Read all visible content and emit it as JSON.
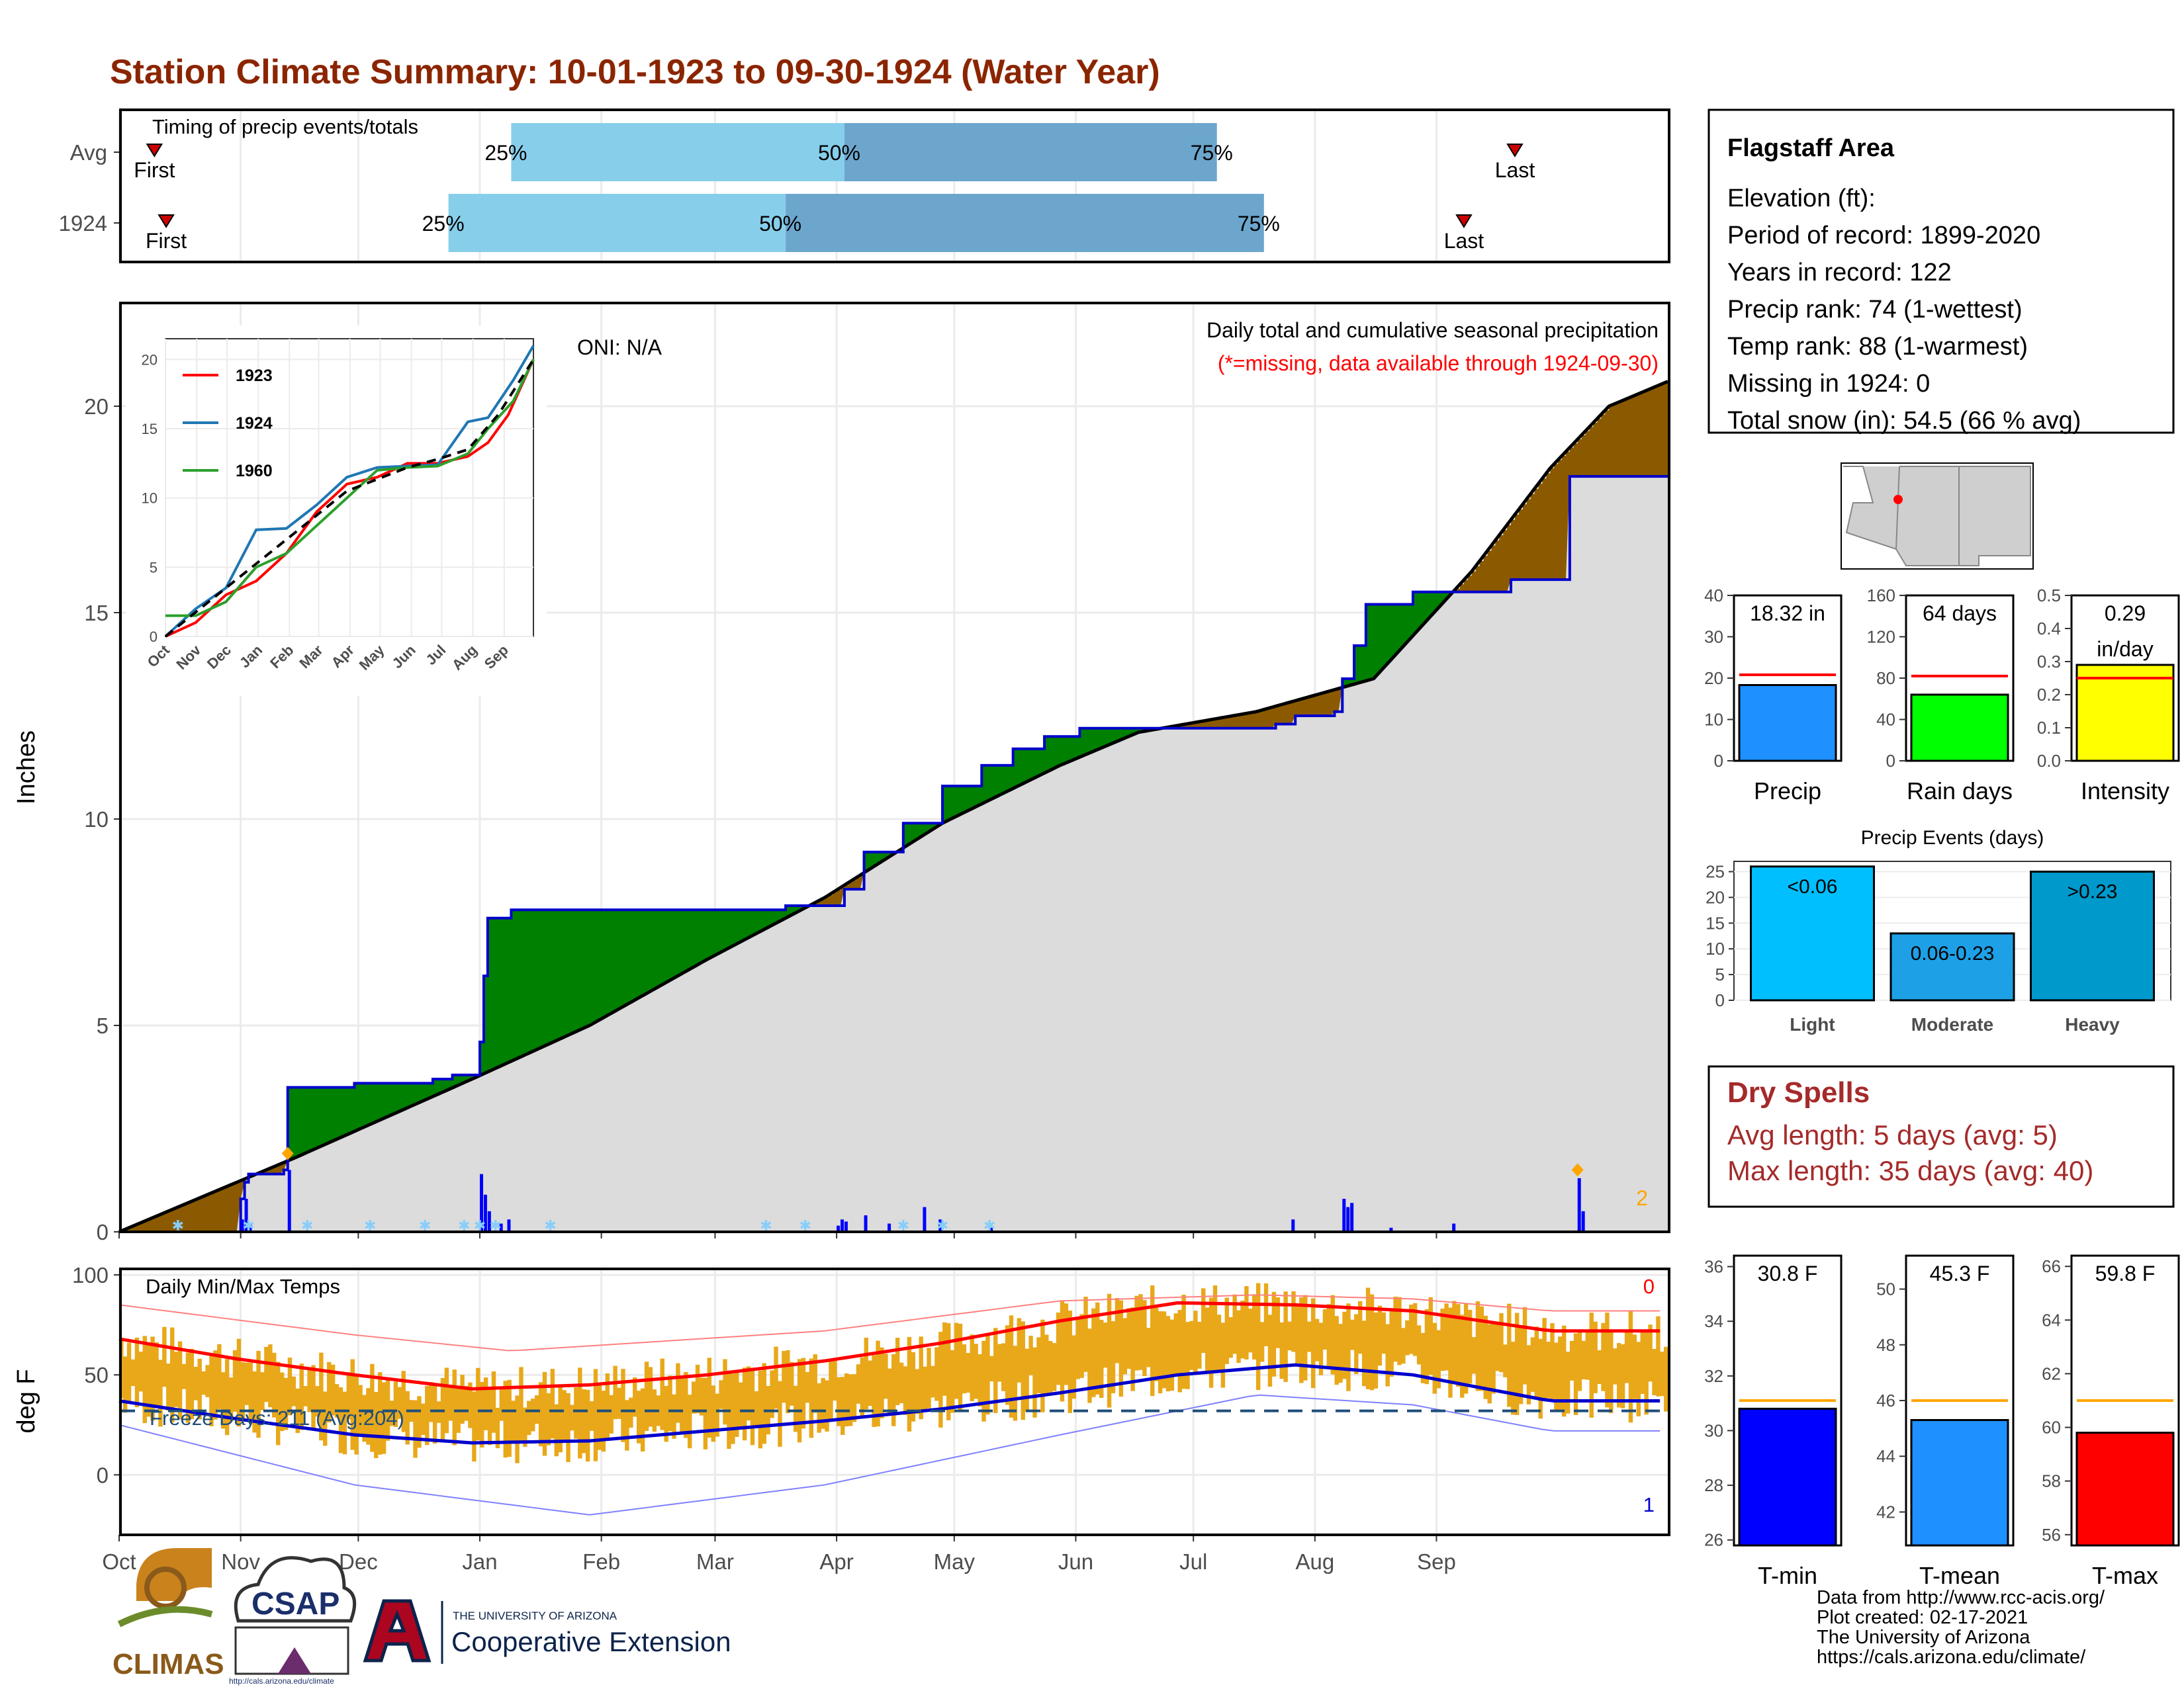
{
  "page": {
    "title": "Station Climate Summary: 10-01-1923 to 09-30-1924 (Water Year)",
    "footer": [
      "Data from http://www.rcc-acis.org/",
      "Plot created: 02-17-2021",
      "The University of Arizona",
      "https://cals.arizona.edu/climate/"
    ],
    "logos": {
      "climas": "CLIMAS",
      "csap": "CSAP",
      "csap_url": "http://cals.arizona.edu/climate",
      "ua_line1": "THE UNIVERSITY OF ARIZONA",
      "ua_line2": "Cooperative Extension"
    }
  },
  "colors": {
    "title": "#8B2500",
    "early": "#87CEEB",
    "late": "#6CA6CD",
    "surplus": "#008000",
    "deficit": "#8B5A00",
    "gray_fill": "#DCDCDC",
    "daily_bar": "#0000FF",
    "precip": "#1E90FF",
    "raindays": "#00FF00",
    "intensity": "#FFFF00",
    "avg_line": "#FF0000",
    "temp_bar": "#E8A81A",
    "tmin": "#0000FF",
    "tmean": "#1E90FF",
    "tmax": "#FF0000",
    "orange_line": "#FFA500",
    "dry": "#A52A2A"
  },
  "months": [
    "Oct",
    "Nov",
    "Dec",
    "Jan",
    "Feb",
    "Mar",
    "Apr",
    "May",
    "Jun",
    "Jul",
    "Aug",
    "Sep"
  ],
  "timing": {
    "label": "Timing of precip events/totals",
    "rows": [
      {
        "name": "Avg",
        "q25_day": 100,
        "q50_day": 185,
        "q75_day": 280,
        "first_day": 9,
        "last_day": 356,
        "q25": "25%",
        "q50": "50%",
        "q75": "75%",
        "first": "First",
        "last": "Last"
      },
      {
        "name": "1924",
        "q25_day": 84,
        "q50_day": 170,
        "q75_day": 292,
        "first_day": 12,
        "last_day": 343,
        "q25": "25%",
        "q50": "50%",
        "q75": "75%",
        "first": "First",
        "last": "Last"
      }
    ]
  },
  "info": {
    "heading": "Flagstaff Area",
    "lines": [
      "Elevation (ft):",
      "Period of record: 1899-2020",
      "Years in record: 122",
      "Precip rank: 74 (1-wettest)",
      "Temp rank: 88 (1-warmest)",
      "Missing in 1924: 0",
      "Total snow (in): 54.5 (66 % avg)"
    ]
  },
  "precip_main": {
    "ylabel": "Inches",
    "note1": "Daily total and cumulative seasonal precipitation",
    "note2": "(*=missing, data available through 1924-09-30)",
    "oni": "ONI: N/A",
    "count_label": "2",
    "yticks": [
      "0",
      "5",
      "10",
      "15",
      "20"
    ]
  },
  "chart_data": [
    {
      "type": "area",
      "name": "cumulative",
      "xlabel": "",
      "ylabel": "Inches",
      "ylim": [
        0,
        22.5
      ],
      "x_unit": "day of water year",
      "avg_cumulative": [
        [
          0,
          0
        ],
        [
          30,
          1.2
        ],
        [
          45,
          1.8
        ],
        [
          90,
          3.7
        ],
        [
          120,
          5.0
        ],
        [
          150,
          6.6
        ],
        [
          180,
          8.1
        ],
        [
          210,
          9.9
        ],
        [
          240,
          11.3
        ],
        [
          260,
          12.1
        ],
        [
          290,
          12.6
        ],
        [
          320,
          13.4
        ],
        [
          345,
          16.0
        ],
        [
          365,
          18.5
        ],
        [
          380,
          20.0
        ],
        [
          395,
          20.6
        ]
      ],
      "year_cumulative": [
        [
          0,
          0
        ],
        [
          30,
          0
        ],
        [
          31,
          0.8
        ],
        [
          32,
          1.2
        ],
        [
          33,
          1.4
        ],
        [
          42,
          1.5
        ],
        [
          43,
          3.5
        ],
        [
          60,
          3.6
        ],
        [
          65,
          3.6
        ],
        [
          80,
          3.7
        ],
        [
          85,
          3.8
        ],
        [
          92,
          4.6
        ],
        [
          93,
          6.2
        ],
        [
          94,
          7.6
        ],
        [
          100,
          7.8
        ],
        [
          140,
          7.8
        ],
        [
          170,
          7.9
        ],
        [
          185,
          8.3
        ],
        [
          190,
          9.2
        ],
        [
          200,
          9.9
        ],
        [
          210,
          10.8
        ],
        [
          220,
          11.3
        ],
        [
          228,
          11.7
        ],
        [
          236,
          12.0
        ],
        [
          245,
          12.2
        ],
        [
          265,
          12.2
        ],
        [
          295,
          12.3
        ],
        [
          300,
          12.5
        ],
        [
          310,
          12.6
        ],
        [
          312,
          13.4
        ],
        [
          315,
          14.2
        ],
        [
          318,
          15.2
        ],
        [
          330,
          15.5
        ],
        [
          345,
          15.5
        ],
        [
          355,
          15.8
        ],
        [
          370,
          18.3
        ],
        [
          395,
          18.3
        ]
      ],
      "daily_precip": [
        [
          31,
          0.3
        ],
        [
          32,
          0.8
        ],
        [
          33,
          0.2
        ],
        [
          43,
          1.5
        ],
        [
          92,
          1.4
        ],
        [
          93,
          0.9
        ],
        [
          94,
          0.5
        ],
        [
          97,
          0.2
        ],
        [
          99,
          0.3
        ],
        [
          183,
          0.15
        ],
        [
          184,
          0.3
        ],
        [
          185,
          0.25
        ],
        [
          190,
          0.4
        ],
        [
          196,
          0.2
        ],
        [
          205,
          0.6
        ],
        [
          209,
          0.3
        ],
        [
          222,
          0.1
        ],
        [
          299,
          0.3
        ],
        [
          312,
          0.8
        ],
        [
          313,
          0.6
        ],
        [
          314,
          0.7
        ],
        [
          324,
          0.1
        ],
        [
          340,
          0.2
        ],
        [
          372,
          1.3
        ],
        [
          373,
          0.5
        ]
      ]
    },
    {
      "type": "line",
      "name": "inset cumulative",
      "ylim": [
        0,
        20
      ],
      "series": [
        {
          "name": "1923",
          "color": "#FF0000",
          "values": [
            [
              0,
              0
            ],
            [
              30,
              1
            ],
            [
              60,
              3
            ],
            [
              90,
              4
            ],
            [
              120,
              6
            ],
            [
              150,
              9
            ],
            [
              180,
              11
            ],
            [
              210,
              11.5
            ],
            [
              240,
              12.5
            ],
            [
              270,
              12.5
            ],
            [
              300,
              13
            ],
            [
              320,
              14
            ],
            [
              340,
              16
            ],
            [
              365,
              20
            ]
          ]
        },
        {
          "name": "1924",
          "color": "#1F77B4",
          "values": [
            [
              0,
              0
            ],
            [
              30,
              2
            ],
            [
              60,
              3.5
            ],
            [
              90,
              7.7
            ],
            [
              120,
              7.8
            ],
            [
              150,
              9.5
            ],
            [
              180,
              11.5
            ],
            [
              210,
              12.2
            ],
            [
              240,
              12.3
            ],
            [
              270,
              12.4
            ],
            [
              300,
              15.5
            ],
            [
              320,
              15.8
            ],
            [
              345,
              18.5
            ],
            [
              365,
              21
            ]
          ]
        },
        {
          "name": "1960",
          "color": "#2CA02C",
          "values": [
            [
              0,
              1.5
            ],
            [
              30,
              1.5
            ],
            [
              60,
              2.5
            ],
            [
              90,
              5
            ],
            [
              120,
              6
            ],
            [
              150,
              8
            ],
            [
              180,
              10
            ],
            [
              210,
              12
            ],
            [
              240,
              12.2
            ],
            [
              270,
              12.3
            ],
            [
              300,
              13.2
            ],
            [
              320,
              15
            ],
            [
              345,
              17
            ],
            [
              365,
              20
            ]
          ]
        },
        {
          "name": "avg",
          "color": "#000000",
          "dashed": true,
          "values": [
            [
              0,
              0
            ],
            [
              60,
              3.5
            ],
            [
              120,
              7
            ],
            [
              180,
              10.5
            ],
            [
              240,
              12.2
            ],
            [
              270,
              12.8
            ],
            [
              300,
              13.5
            ],
            [
              330,
              16
            ],
            [
              365,
              20
            ]
          ]
        }
      ],
      "xticks": [
        "Oct",
        "Nov",
        "Dec",
        "Jan",
        "Feb",
        "Mar",
        "Apr",
        "May",
        "Jun",
        "Jul",
        "Aug",
        "Sep"
      ],
      "yticks": [
        "0",
        "5",
        "10",
        "15",
        "20"
      ]
    },
    {
      "type": "bar",
      "name": "Precip",
      "categories": [
        "Precip"
      ],
      "values": [
        18.32
      ],
      "avg": 20.8,
      "ylim": [
        0,
        40
      ],
      "label": "18.32 in",
      "yticks": [
        "0",
        "10",
        "20",
        "30",
        "40"
      ]
    },
    {
      "type": "bar",
      "name": "Rain days",
      "categories": [
        "Rain days"
      ],
      "values": [
        64
      ],
      "avg": 82,
      "ylim": [
        0,
        160
      ],
      "label": "64 days",
      "yticks": [
        "0",
        "40",
        "80",
        "120",
        "160"
      ]
    },
    {
      "type": "bar",
      "name": "Intensity",
      "categories": [
        "Intensity"
      ],
      "values": [
        0.29
      ],
      "avg": 0.25,
      "ylim": [
        0,
        0.5
      ],
      "label": "0.29",
      "label2": "in/day",
      "yticks": [
        "0.0",
        "0.1",
        "0.2",
        "0.3",
        "0.4",
        "0.5"
      ]
    },
    {
      "type": "bar",
      "title": "Precip Events (days)",
      "categories": [
        "Light",
        "Moderate",
        "Heavy"
      ],
      "values": [
        26,
        13,
        25
      ],
      "ylim": [
        0,
        27
      ],
      "bar_labels": [
        "<0.06",
        "0.06-0.23",
        ">0.23"
      ],
      "yticks": [
        "0",
        "5",
        "10",
        "15",
        "20",
        "25"
      ]
    },
    {
      "type": "bar",
      "title": "Daily Min/Max Temps",
      "ylabel": "deg F",
      "ylim": [
        -30,
        103
      ],
      "freeze_label": "Freeze Days: 211 (Avg:204)",
      "freeze_line": 32,
      "count_top": "0",
      "count_bottom": "1",
      "yticks": [
        "0",
        "50",
        "100"
      ],
      "tmax_avg": [
        [
          0,
          68
        ],
        [
          30,
          58
        ],
        [
          60,
          50
        ],
        [
          90,
          43
        ],
        [
          120,
          45
        ],
        [
          150,
          50
        ],
        [
          180,
          57
        ],
        [
          210,
          66
        ],
        [
          240,
          77
        ],
        [
          270,
          86
        ],
        [
          300,
          85
        ],
        [
          330,
          82
        ],
        [
          365,
          72
        ]
      ],
      "tmin_avg": [
        [
          0,
          37
        ],
        [
          30,
          28
        ],
        [
          60,
          20
        ],
        [
          90,
          16
        ],
        [
          120,
          17
        ],
        [
          150,
          22
        ],
        [
          180,
          27
        ],
        [
          210,
          33
        ],
        [
          240,
          41
        ],
        [
          270,
          50
        ],
        [
          300,
          55
        ],
        [
          330,
          50
        ],
        [
          365,
          37
        ]
      ],
      "tmax_record": [
        [
          0,
          85
        ],
        [
          60,
          70
        ],
        [
          100,
          62
        ],
        [
          180,
          72
        ],
        [
          240,
          87
        ],
        [
          290,
          90
        ],
        [
          330,
          88
        ],
        [
          365,
          82
        ]
      ],
      "tmin_record": [
        [
          0,
          25
        ],
        [
          60,
          -5
        ],
        [
          120,
          -20
        ],
        [
          180,
          -5
        ],
        [
          240,
          20
        ],
        [
          290,
          40
        ],
        [
          330,
          35
        ],
        [
          365,
          22
        ]
      ]
    },
    {
      "type": "bar",
      "name": "T-min",
      "categories": [
        "T-min"
      ],
      "values": [
        30.8
      ],
      "avg": 31.1,
      "ylim": [
        25.8,
        36.4
      ],
      "label": "30.8 F",
      "yticks": [
        "26",
        "28",
        "30",
        "32",
        "34",
        "36"
      ]
    },
    {
      "type": "bar",
      "name": "T-mean",
      "categories": [
        "T-mean"
      ],
      "values": [
        45.3
      ],
      "avg": 46.0,
      "ylim": [
        40.8,
        51.2
      ],
      "label": "45.3 F",
      "yticks": [
        "42",
        "44",
        "46",
        "48",
        "50"
      ]
    },
    {
      "type": "bar",
      "name": "T-max",
      "categories": [
        "T-max"
      ],
      "values": [
        59.8
      ],
      "avg": 61.0,
      "ylim": [
        55.6,
        66.4
      ],
      "label": "59.8 F",
      "yticks": [
        "56",
        "58",
        "60",
        "62",
        "64",
        "66"
      ]
    }
  ],
  "dry": {
    "heading": "Dry Spells",
    "line1": "Avg length: 5 days (avg: 5)",
    "line2": "Max length: 35 days (avg: 40)"
  }
}
